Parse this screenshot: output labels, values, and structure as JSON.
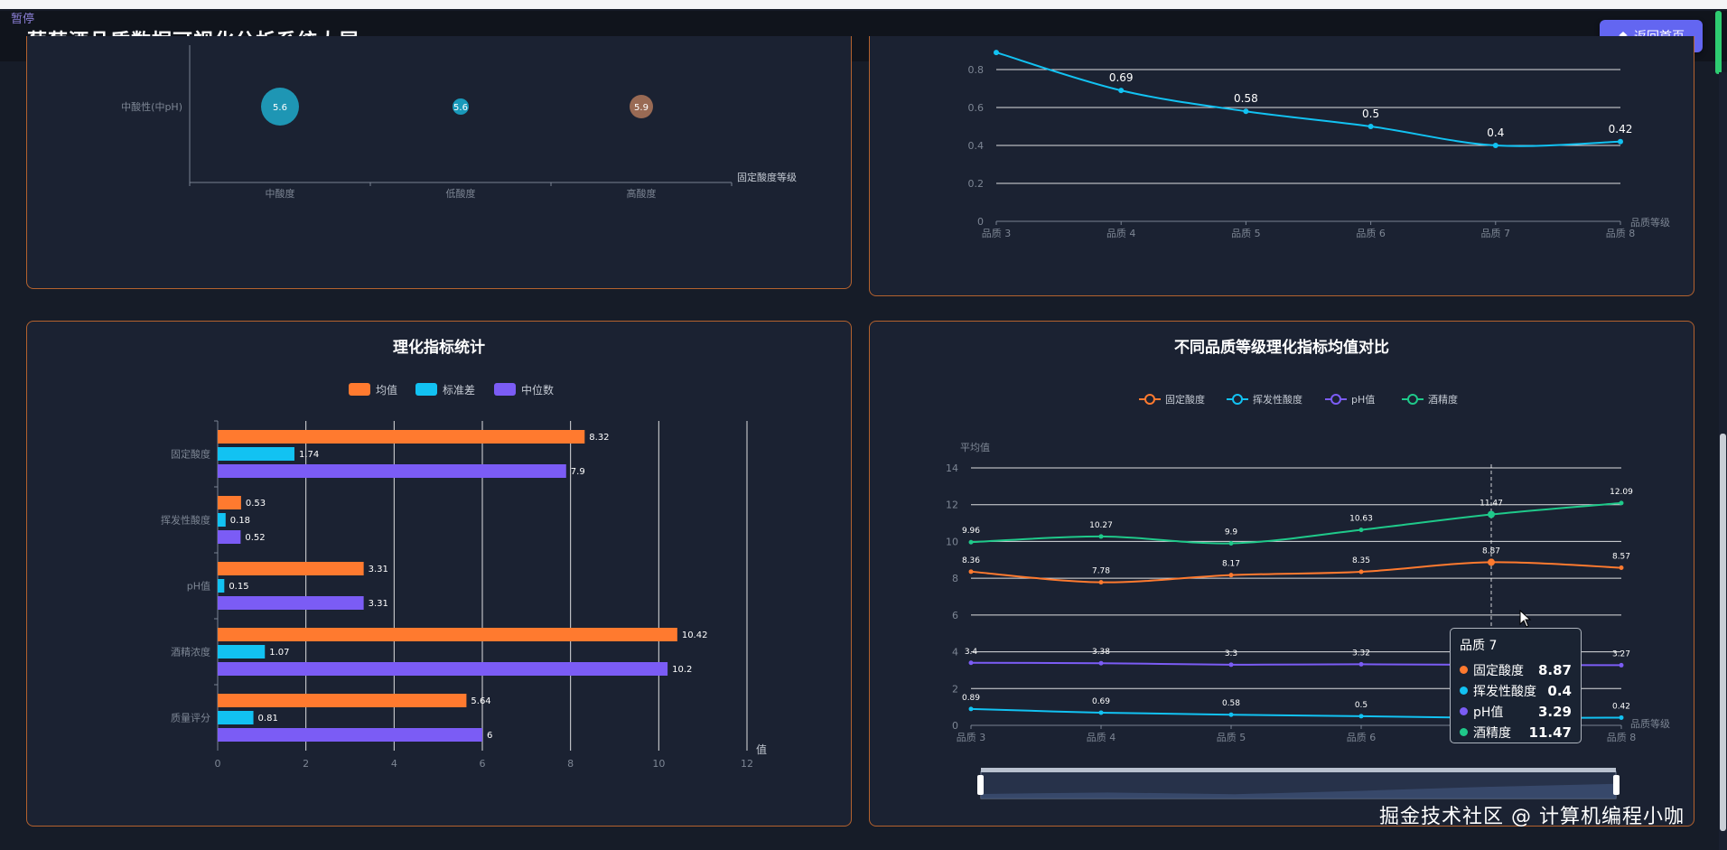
{
  "header": {
    "title": "葡萄酒品质数据可视化分析系统大屏",
    "back_button": "返回首页",
    "pause_label": "暂停"
  },
  "watermark": "掘金技术社区 @ 计算机编程小咖",
  "colors": {
    "orange": "#ff7a2f",
    "cyan": "#12c2f2",
    "purple": "#7b5cf5",
    "green": "#1fc98a",
    "axis": "#7a8393",
    "grid": "#ffffff"
  },
  "chart_data": [
    {
      "id": "bubble",
      "type": "scatter",
      "ylabel_category": "中酸性(中pH)",
      "xlabel": "固定酸度等级",
      "categories": [
        "中酸度",
        "低酸度",
        "高酸度"
      ],
      "points": [
        {
          "x": "中酸度",
          "y": "中酸性(中pH)",
          "value": 5.6,
          "color": "#1fa3c2",
          "size": "large"
        },
        {
          "x": "低酸度",
          "y": "中酸性(中pH)",
          "value": 5.6,
          "color": "#1aa6c9",
          "size": "small"
        },
        {
          "x": "高酸度",
          "y": "中酸性(中pH)",
          "value": 5.9,
          "color": "#a77258",
          "size": "medium"
        }
      ]
    },
    {
      "id": "line_top",
      "type": "line",
      "xlabel": "品质等级",
      "categories": [
        "品质 3",
        "品质 4",
        "品质 5",
        "品质 6",
        "品质 7",
        "品质 8"
      ],
      "yticks": [
        "0",
        "0.2",
        "0.4",
        "0.6",
        "0.8"
      ],
      "ylim": [
        0,
        0.8
      ],
      "values": [
        0.89,
        0.69,
        0.58,
        0.5,
        0.4,
        0.42
      ],
      "labels": [
        "",
        "0.69",
        "0.58",
        "0.5",
        "0.4",
        "0.42"
      ],
      "color": "#12c2f2"
    },
    {
      "id": "stats",
      "type": "bar",
      "title": "理化指标统计",
      "xlabel": "值",
      "categories": [
        "固定酸度",
        "挥发性酸度",
        "pH值",
        "酒精浓度",
        "质量评分"
      ],
      "xticks": [
        "0",
        "2",
        "4",
        "6",
        "8",
        "10",
        "12"
      ],
      "xlim": [
        0,
        12
      ],
      "series": [
        {
          "name": "均值",
          "color": "#ff7a2f",
          "values": [
            8.32,
            0.53,
            3.31,
            10.42,
            5.64
          ]
        },
        {
          "name": "标准差",
          "color": "#12c2f2",
          "values": [
            1.74,
            0.18,
            0.15,
            1.07,
            0.81
          ]
        },
        {
          "name": "中位数",
          "color": "#7b5cf5",
          "values": [
            7.9,
            0.52,
            3.31,
            10.2,
            6
          ]
        }
      ]
    },
    {
      "id": "compare",
      "type": "line",
      "title": "不同品质等级理化指标均值对比",
      "ylabel": "平均值",
      "xlabel": "品质等级",
      "categories": [
        "品质 3",
        "品质 4",
        "品质 5",
        "品质 6",
        "品质 7",
        "品质 8"
      ],
      "yticks": [
        "0",
        "2",
        "4",
        "6",
        "8",
        "10",
        "12",
        "14"
      ],
      "ylim": [
        0,
        14
      ],
      "series": [
        {
          "name": "固定酸度",
          "color": "#ff7a2f",
          "values": [
            8.36,
            7.78,
            8.17,
            8.35,
            8.87,
            8.57
          ]
        },
        {
          "name": "挥发性酸度",
          "color": "#12c2f2",
          "values": [
            0.89,
            0.69,
            0.58,
            0.5,
            0.4,
            0.42
          ]
        },
        {
          "name": "pH值",
          "color": "#7b5cf5",
          "values": [
            3.4,
            3.38,
            3.3,
            3.32,
            3.29,
            3.27
          ]
        },
        {
          "name": "酒精度",
          "color": "#1fc98a",
          "values": [
            9.96,
            10.27,
            9.9,
            10.63,
            11.47,
            12.09
          ]
        }
      ],
      "tooltip": {
        "title": "品质 7",
        "rows": [
          {
            "name": "固定酸度",
            "value": "8.87",
            "color": "#ff7a2f"
          },
          {
            "name": "挥发性酸度",
            "value": "0.4",
            "color": "#12c2f2"
          },
          {
            "name": "pH值",
            "value": "3.29",
            "color": "#7b5cf5"
          },
          {
            "name": "酒精度",
            "value": "11.47",
            "color": "#1fc98a"
          }
        ]
      }
    }
  ]
}
